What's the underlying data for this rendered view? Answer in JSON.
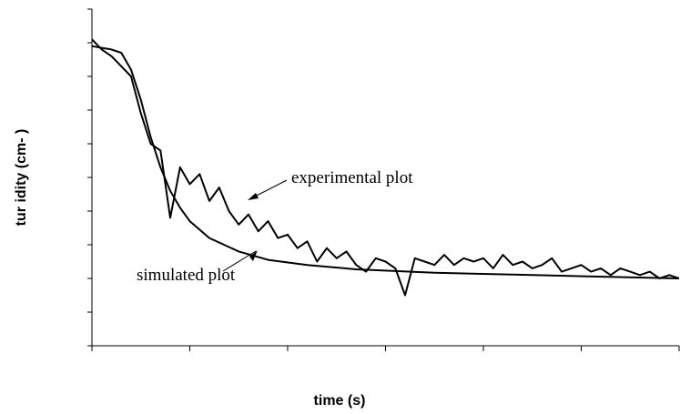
{
  "chart_data": {
    "type": "line",
    "x_label": "time (s)",
    "y_label": "tur idity (cm- )",
    "annotations": [
      "experimental plot",
      "simulated plot"
    ],
    "xlim": [
      0,
      6
    ],
    "ylim": [
      0,
      10
    ],
    "xticks": [
      0,
      1,
      2,
      3,
      4,
      5,
      6
    ],
    "yticks": [
      0,
      1,
      2,
      3,
      4,
      5,
      6,
      7,
      8,
      9,
      10
    ],
    "series": [
      {
        "name": "experimental plot",
        "color": "#000000",
        "x": [
          0,
          0.1,
          0.2,
          0.3,
          0.4,
          0.5,
          0.6,
          0.7,
          0.8,
          0.9,
          1.0,
          1.1,
          1.2,
          1.3,
          1.4,
          1.5,
          1.6,
          1.7,
          1.8,
          1.9,
          2.0,
          2.1,
          2.2,
          2.3,
          2.4,
          2.5,
          2.6,
          2.7,
          2.8,
          2.9,
          3.0,
          3.1,
          3.2,
          3.3,
          3.4,
          3.5,
          3.6,
          3.7,
          3.8,
          3.9,
          4.0,
          4.1,
          4.2,
          4.3,
          4.4,
          4.5,
          4.6,
          4.7,
          4.8,
          4.9,
          5.0,
          5.1,
          5.2,
          5.3,
          5.4,
          5.5,
          5.6,
          5.7,
          5.8,
          5.9,
          6.0
        ],
        "values": [
          9.1,
          8.8,
          8.6,
          8.3,
          8.0,
          6.9,
          6.0,
          5.8,
          3.8,
          5.3,
          4.8,
          5.1,
          4.3,
          4.7,
          4.0,
          3.6,
          3.9,
          3.4,
          3.7,
          3.2,
          3.3,
          2.9,
          3.1,
          2.5,
          2.9,
          2.6,
          2.8,
          2.4,
          2.2,
          2.6,
          2.5,
          2.3,
          1.5,
          2.6,
          2.5,
          2.4,
          2.7,
          2.4,
          2.6,
          2.5,
          2.6,
          2.3,
          2.7,
          2.4,
          2.5,
          2.3,
          2.4,
          2.6,
          2.2,
          2.3,
          2.4,
          2.2,
          2.3,
          2.1,
          2.3,
          2.2,
          2.1,
          2.2,
          2.0,
          2.1,
          2.0
        ]
      },
      {
        "name": "simulated plot",
        "color": "#000000",
        "x": [
          0,
          0.1,
          0.2,
          0.3,
          0.4,
          0.5,
          0.6,
          0.7,
          0.8,
          0.9,
          1.0,
          1.2,
          1.5,
          1.8,
          2.2,
          2.7,
          3.5,
          4.5,
          6.0
        ],
        "values": [
          8.9,
          8.85,
          8.8,
          8.7,
          8.2,
          7.3,
          6.2,
          5.3,
          4.6,
          4.1,
          3.7,
          3.2,
          2.8,
          2.55,
          2.4,
          2.27,
          2.17,
          2.1,
          2.0
        ]
      }
    ]
  }
}
